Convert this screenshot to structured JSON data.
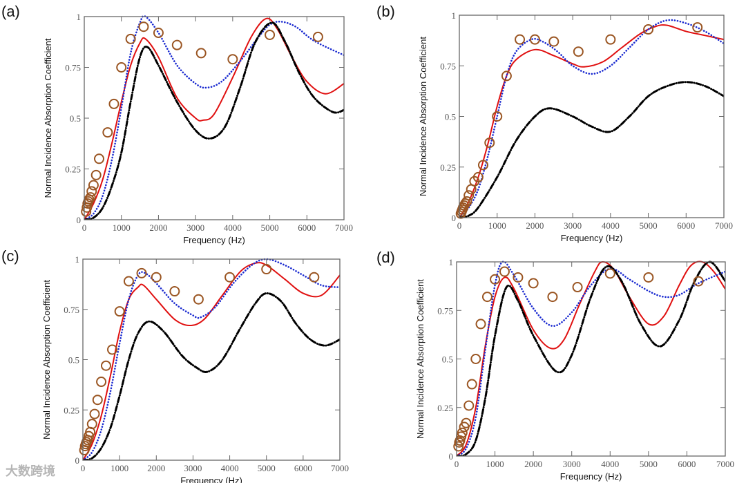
{
  "colors": {
    "exp": "#9a5522",
    "red": "#e01010",
    "blue": "#1a2ad0",
    "black": "#000000",
    "axis": "#666666"
  },
  "watermark": "大数跨境",
  "chart_data": [
    {
      "panel": "(a)",
      "type": "line",
      "xlabel": "Frequency (Hz)",
      "ylabel": "Normal Incidence Absorption Coefficient",
      "xlim": [
        0,
        7000
      ],
      "ylim": [
        0,
        1
      ],
      "xticks": [
        "0",
        "1000",
        "2000",
        "3000",
        "4000",
        "5000",
        "6000",
        "7000"
      ],
      "yticks": [
        "0",
        "0.25",
        "0.5",
        "0.75",
        "1"
      ],
      "series": [
        {
          "name": "red-solid",
          "style": "solid",
          "x": [
            0,
            250,
            500,
            750,
            1000,
            1250,
            1500,
            1650,
            2000,
            2500,
            3000,
            3200,
            3500,
            4000,
            4500,
            4900,
            5200,
            5600,
            6000,
            6500,
            7000
          ],
          "y": [
            0,
            0.08,
            0.2,
            0.38,
            0.58,
            0.76,
            0.87,
            0.89,
            0.8,
            0.6,
            0.5,
            0.49,
            0.52,
            0.7,
            0.9,
            0.99,
            0.94,
            0.8,
            0.68,
            0.62,
            0.67
          ]
        },
        {
          "name": "blue-dotted",
          "style": "dotted",
          "x": [
            0,
            250,
            500,
            750,
            1000,
            1250,
            1500,
            1650,
            2000,
            2500,
            3000,
            3300,
            3700,
            4200,
            4700,
            5000,
            5300,
            5700,
            6200,
            7000
          ],
          "y": [
            0,
            0.03,
            0.12,
            0.3,
            0.55,
            0.82,
            0.97,
            1.0,
            0.92,
            0.76,
            0.67,
            0.65,
            0.68,
            0.78,
            0.9,
            0.96,
            0.975,
            0.95,
            0.88,
            0.81
          ]
        },
        {
          "name": "black-dashdot",
          "style": "dashdot",
          "x": [
            0,
            250,
            500,
            750,
            1000,
            1250,
            1500,
            1700,
            2000,
            2500,
            3000,
            3400,
            3800,
            4200,
            4600,
            5050,
            5400,
            5800,
            6200,
            6700,
            7000
          ],
          "y": [
            0,
            0.01,
            0.06,
            0.17,
            0.33,
            0.58,
            0.8,
            0.85,
            0.76,
            0.58,
            0.44,
            0.4,
            0.46,
            0.65,
            0.87,
            0.97,
            0.88,
            0.72,
            0.6,
            0.53,
            0.54
          ]
        },
        {
          "name": "experimental",
          "style": "circles",
          "x": [
            50,
            70,
            90,
            110,
            130,
            170,
            200,
            250,
            320,
            400,
            630,
            800,
            1000,
            1250,
            1600,
            2000,
            2500,
            3150,
            4000,
            5000,
            6300
          ],
          "y": [
            0.04,
            0.06,
            0.08,
            0.09,
            0.1,
            0.11,
            0.14,
            0.17,
            0.22,
            0.3,
            0.43,
            0.57,
            0.75,
            0.89,
            0.95,
            0.92,
            0.86,
            0.82,
            0.79,
            0.91,
            0.9
          ]
        }
      ]
    },
    {
      "panel": "(b)",
      "type": "line",
      "xlabel": "Frequency (Hz)",
      "ylabel": "Normal Incidence Absorption Coefficient",
      "xlim": [
        0,
        7000
      ],
      "ylim": [
        0,
        1
      ],
      "xticks": [
        "0",
        "1000",
        "2000",
        "3000",
        "4000",
        "5000",
        "6000",
        "7000"
      ],
      "yticks": [
        "0",
        "0.25",
        "0.5",
        "0.75",
        "1"
      ],
      "series": [
        {
          "name": "red-solid",
          "style": "solid",
          "x": [
            0,
            250,
            500,
            750,
            1000,
            1250,
            1500,
            2000,
            2500,
            3000,
            3300,
            3800,
            4300,
            4800,
            5200,
            5500,
            6000,
            6500,
            7000
          ],
          "y": [
            0,
            0.08,
            0.2,
            0.36,
            0.55,
            0.7,
            0.78,
            0.83,
            0.8,
            0.76,
            0.745,
            0.77,
            0.84,
            0.91,
            0.945,
            0.95,
            0.92,
            0.9,
            0.88
          ]
        },
        {
          "name": "blue-dotted",
          "style": "dotted",
          "x": [
            0,
            250,
            500,
            750,
            1000,
            1250,
            1500,
            1900,
            2200,
            2600,
            3000,
            3500,
            4000,
            4500,
            5000,
            5500,
            6000,
            6500,
            7000
          ],
          "y": [
            0,
            0.05,
            0.14,
            0.3,
            0.5,
            0.7,
            0.82,
            0.88,
            0.87,
            0.82,
            0.75,
            0.71,
            0.75,
            0.84,
            0.93,
            0.975,
            0.96,
            0.92,
            0.86
          ]
        },
        {
          "name": "black-dashdot",
          "style": "dashdot",
          "x": [
            0,
            250,
            500,
            1000,
            1500,
            2000,
            2400,
            3000,
            3500,
            4000,
            4500,
            5000,
            5500,
            6000,
            6500,
            7000
          ],
          "y": [
            0,
            0.01,
            0.05,
            0.2,
            0.38,
            0.5,
            0.54,
            0.5,
            0.45,
            0.425,
            0.5,
            0.6,
            0.65,
            0.67,
            0.65,
            0.6
          ]
        },
        {
          "name": "experimental",
          "style": "circles",
          "x": [
            40,
            60,
            80,
            100,
            125,
            160,
            200,
            250,
            315,
            400,
            500,
            630,
            800,
            1000,
            1250,
            1600,
            2000,
            2500,
            3150,
            4000,
            5000,
            6300
          ],
          "y": [
            0.02,
            0.03,
            0.04,
            0.05,
            0.06,
            0.07,
            0.08,
            0.11,
            0.14,
            0.18,
            0.2,
            0.26,
            0.37,
            0.5,
            0.7,
            0.88,
            0.88,
            0.87,
            0.82,
            0.88,
            0.93,
            0.94
          ]
        }
      ]
    },
    {
      "panel": "(c)",
      "type": "line",
      "xlabel": "Frequency (Hz)",
      "ylabel": "Normal Incidence Absorption Coefficient",
      "xlim": [
        0,
        7000
      ],
      "ylim": [
        0,
        1
      ],
      "xticks": [
        "0",
        "1000",
        "2000",
        "3000",
        "4000",
        "5000",
        "6000",
        "7000"
      ],
      "yticks": [
        "0",
        "0.25",
        "0.5",
        "0.75",
        "1"
      ],
      "series": [
        {
          "name": "red-solid",
          "style": "solid",
          "x": [
            0,
            250,
            500,
            750,
            1000,
            1250,
            1500,
            1650,
            2000,
            2500,
            2900,
            3300,
            3800,
            4300,
            4700,
            5000,
            5500,
            6000,
            6500,
            7000
          ],
          "y": [
            0,
            0.08,
            0.22,
            0.42,
            0.64,
            0.8,
            0.86,
            0.87,
            0.8,
            0.7,
            0.67,
            0.7,
            0.82,
            0.94,
            0.98,
            0.97,
            0.9,
            0.83,
            0.82,
            0.92
          ]
        },
        {
          "name": "blue-dotted",
          "style": "dotted",
          "x": [
            0,
            250,
            500,
            750,
            1000,
            1250,
            1500,
            1700,
            2000,
            2500,
            3000,
            3200,
            3600,
            4100,
            4600,
            5000,
            5500,
            6000,
            6500,
            7000
          ],
          "y": [
            0,
            0.04,
            0.15,
            0.34,
            0.58,
            0.8,
            0.92,
            0.93,
            0.88,
            0.78,
            0.72,
            0.71,
            0.76,
            0.88,
            0.97,
            1.0,
            0.97,
            0.92,
            0.87,
            0.86
          ]
        },
        {
          "name": "black-dashdot",
          "style": "dashdot",
          "x": [
            0,
            250,
            500,
            750,
            1000,
            1250,
            1500,
            1800,
            2200,
            2700,
            3100,
            3400,
            3800,
            4300,
            4700,
            5000,
            5400,
            5800,
            6200,
            6600,
            7000
          ],
          "y": [
            0,
            0.01,
            0.06,
            0.16,
            0.32,
            0.5,
            0.63,
            0.69,
            0.64,
            0.52,
            0.46,
            0.44,
            0.5,
            0.66,
            0.78,
            0.83,
            0.79,
            0.68,
            0.6,
            0.57,
            0.6
          ]
        },
        {
          "name": "experimental",
          "style": "circles",
          "x": [
            40,
            60,
            80,
            100,
            130,
            160,
            200,
            250,
            320,
            400,
            500,
            630,
            800,
            1000,
            1250,
            1600,
            2000,
            2500,
            3150,
            4000,
            5000,
            6300
          ],
          "y": [
            0.05,
            0.07,
            0.08,
            0.09,
            0.1,
            0.12,
            0.14,
            0.18,
            0.23,
            0.3,
            0.39,
            0.47,
            0.55,
            0.74,
            0.89,
            0.93,
            0.91,
            0.84,
            0.8,
            0.91,
            0.95,
            0.91
          ]
        }
      ]
    },
    {
      "panel": "(d)",
      "type": "line",
      "xlabel": "Frequency (Hz)",
      "ylabel": "Normal Incidence Absorption Coefficient",
      "xlim": [
        0,
        7000
      ],
      "ylim": [
        0,
        1
      ],
      "xticks": [
        "0",
        "1000",
        "2000",
        "3000",
        "4000",
        "5000",
        "6000",
        "7000"
      ],
      "yticks": [
        "0",
        "0.25",
        "0.5",
        "0.75",
        "1"
      ],
      "series": [
        {
          "name": "red-solid",
          "style": "solid",
          "x": [
            0,
            250,
            500,
            750,
            1000,
            1250,
            1500,
            2000,
            2450,
            2800,
            3200,
            3600,
            3800,
            4100,
            4500,
            5000,
            5400,
            5800,
            6100,
            6400,
            6700,
            7000
          ],
          "y": [
            0,
            0.06,
            0.25,
            0.57,
            0.82,
            0.92,
            0.86,
            0.65,
            0.555,
            0.6,
            0.78,
            0.95,
            1.0,
            0.96,
            0.82,
            0.68,
            0.72,
            0.88,
            0.98,
            1.0,
            0.95,
            0.86
          ]
        },
        {
          "name": "blue-dotted",
          "style": "dotted",
          "x": [
            0,
            250,
            500,
            750,
            1000,
            1200,
            1500,
            2000,
            2500,
            3000,
            3500,
            4000,
            4500,
            5000,
            5400,
            5800,
            6300,
            7000
          ],
          "y": [
            0,
            0.04,
            0.2,
            0.55,
            0.88,
            1.0,
            0.93,
            0.76,
            0.67,
            0.74,
            0.88,
            0.965,
            0.91,
            0.85,
            0.82,
            0.83,
            0.89,
            0.95
          ]
        },
        {
          "name": "black-dashdot",
          "style": "dashdot",
          "x": [
            0,
            250,
            500,
            750,
            1000,
            1300,
            1600,
            2000,
            2600,
            3000,
            3500,
            3900,
            4300,
            4800,
            5300,
            5800,
            6200,
            6600,
            7000
          ],
          "y": [
            0,
            0.01,
            0.08,
            0.3,
            0.62,
            0.87,
            0.8,
            0.62,
            0.435,
            0.52,
            0.82,
            0.975,
            0.9,
            0.68,
            0.565,
            0.7,
            0.9,
            1.0,
            0.9
          ]
        },
        {
          "name": "experimental",
          "style": "circles",
          "x": [
            50,
            70,
            90,
            120,
            150,
            200,
            250,
            320,
            400,
            500,
            630,
            800,
            1000,
            1250,
            1600,
            2000,
            2500,
            3150,
            4000,
            5000,
            6300
          ],
          "y": [
            0.05,
            0.07,
            0.08,
            0.1,
            0.12,
            0.15,
            0.17,
            0.26,
            0.37,
            0.5,
            0.68,
            0.82,
            0.91,
            0.95,
            0.92,
            0.89,
            0.82,
            0.87,
            0.94,
            0.92,
            0.9
          ]
        }
      ]
    }
  ]
}
